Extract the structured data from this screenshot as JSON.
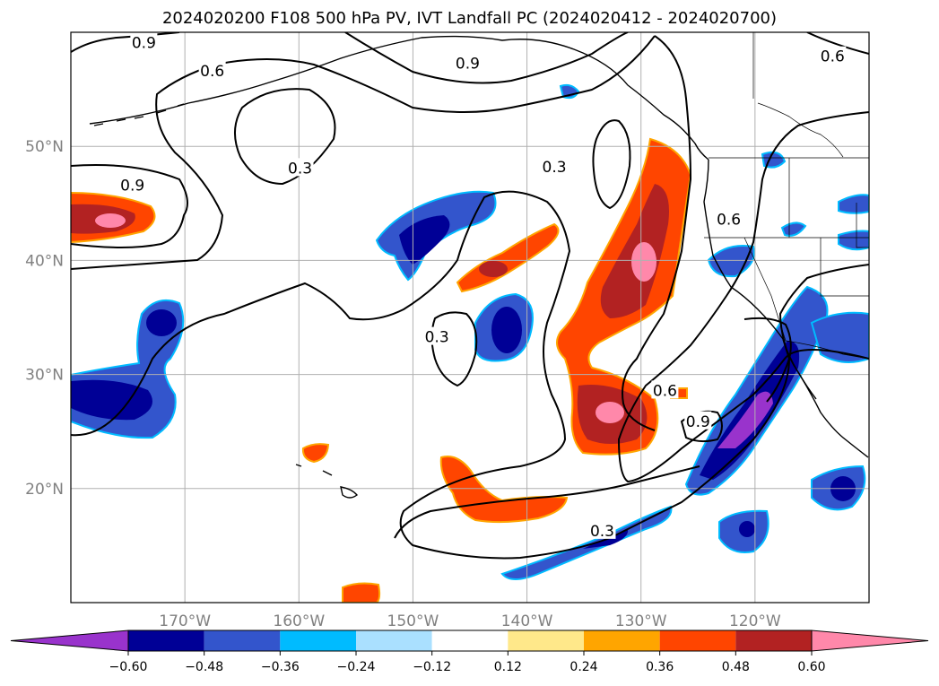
{
  "title": "2024020200 F108 500 hPa PV, IVT Landfall PC (2024020412 - 2024020700)",
  "map": {
    "lon_range": [
      -180,
      -110
    ],
    "lat_range": [
      10,
      60
    ],
    "lat_ticks": [
      {
        "value": 50,
        "label": "50°N"
      },
      {
        "value": 40,
        "label": "40°N"
      },
      {
        "value": 30,
        "label": "30°N"
      },
      {
        "value": 20,
        "label": "20°N"
      }
    ],
    "lon_ticks": [
      {
        "value": -170,
        "label": "170°W"
      },
      {
        "value": -160,
        "label": "160°W"
      },
      {
        "value": -150,
        "label": "150°W"
      },
      {
        "value": -140,
        "label": "140°W"
      },
      {
        "value": -130,
        "label": "130°W"
      },
      {
        "value": -120,
        "label": "120°W"
      }
    ],
    "gridlines": true
  },
  "contour_labels": [
    {
      "text": "0.9",
      "lon": -173.6,
      "lat": 59.1
    },
    {
      "text": "0.6",
      "lon": -167.6,
      "lat": 56.6
    },
    {
      "text": "0.9",
      "lon": -145.2,
      "lat": 57.3
    },
    {
      "text": "0.6",
      "lon": -113.2,
      "lat": 57.9
    },
    {
      "text": "0.3",
      "lon": -159.9,
      "lat": 48.1
    },
    {
      "text": "0.3",
      "lon": -137.6,
      "lat": 48.2
    },
    {
      "text": "0.9",
      "lon": -174.6,
      "lat": 46.6
    },
    {
      "text": "0.6",
      "lon": -122.3,
      "lat": 43.6
    },
    {
      "text": "0.3",
      "lon": -147.9,
      "lat": 33.3
    },
    {
      "text": "0.6",
      "lon": -127.9,
      "lat": 28.6
    },
    {
      "text": "0.9",
      "lon": -125.0,
      "lat": 25.9
    },
    {
      "text": "0.3",
      "lon": -133.4,
      "lat": 16.3
    }
  ],
  "colorbar": {
    "ticks": [
      "−0.60",
      "−0.48",
      "−0.36",
      "−0.24",
      "−0.12",
      "0.12",
      "0.24",
      "0.36",
      "0.48",
      "0.60"
    ],
    "colors": [
      "#9933cc",
      "#000096",
      "#3355cc",
      "#00bbff",
      "#aae0ff",
      "#ffffff",
      "#ffe88a",
      "#ffa500",
      "#ff4500",
      "#b22222",
      "#ff88aa",
      "#ff88aa"
    ]
  }
}
